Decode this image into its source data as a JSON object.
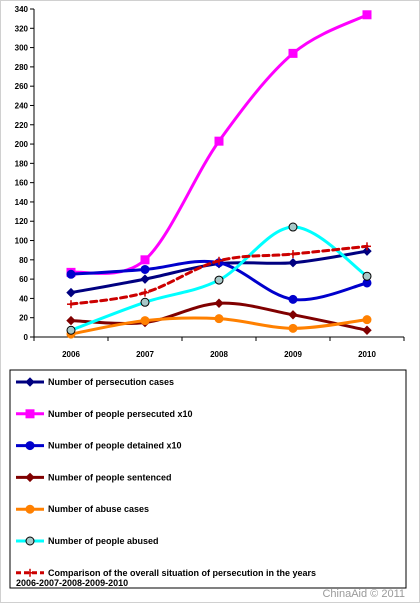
{
  "chart_data": {
    "type": "line",
    "categories": [
      "2006",
      "2007",
      "2008",
      "2009",
      "2010"
    ],
    "ylim": [
      0,
      340
    ],
    "yticks": [
      0,
      20,
      40,
      60,
      80,
      100,
      120,
      140,
      160,
      180,
      200,
      220,
      240,
      260,
      280,
      300,
      320,
      340
    ],
    "grid": false,
    "legend_position": "bottom",
    "series": [
      {
        "name": "Number of persecution cases",
        "values": [
          46,
          60,
          76,
          77,
          89
        ],
        "color": "#000080",
        "marker": "diamond",
        "dashed": false
      },
      {
        "name": "Number of people persecuted x10",
        "values": [
          67,
          80,
          203,
          294,
          334
        ],
        "color": "#ff00ff",
        "marker": "square",
        "dashed": false
      },
      {
        "name": "Number of people detained x10",
        "values": [
          65,
          70,
          77,
          39,
          56
        ],
        "color": "#0000cc",
        "marker": "circle",
        "dashed": false
      },
      {
        "name": "Number of people sentenced",
        "values": [
          17,
          15,
          35,
          23,
          7
        ],
        "color": "#800000",
        "marker": "diamond",
        "dashed": false
      },
      {
        "name": "Number of abuse cases",
        "values": [
          3,
          17,
          19,
          9,
          18
        ],
        "color": "#ff8000",
        "marker": "circle",
        "dashed": false
      },
      {
        "name": "Number of people abused",
        "values": [
          7,
          36,
          59,
          114,
          63
        ],
        "color": "#00ffff",
        "marker": "open-circle",
        "dashed": false
      },
      {
        "name": "Comparison of the overall situation of persecution in the years 2006-2007-2008-2009-2010",
        "values": [
          34,
          46,
          79,
          86,
          94
        ],
        "color": "#cc0000",
        "marker": "plus",
        "dashed": true
      }
    ]
  },
  "watermark": "ChinaAid © 2011"
}
